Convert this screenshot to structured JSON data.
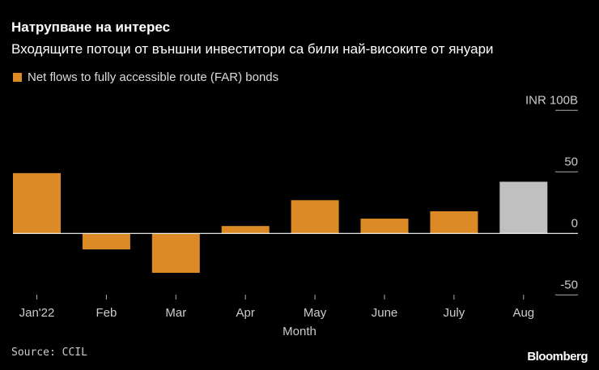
{
  "chart_data": {
    "type": "bar",
    "title": "Натрупване на интерес",
    "subtitle": "Входящите потоци от външни инвеститори са били най-високите от януари",
    "legend": [
      {
        "name": "Net flows to fully accessible route (FAR) bonds",
        "color": "#db8a26"
      }
    ],
    "legend_placement": "top-left",
    "categories": [
      "Jan'22",
      "Feb",
      "Mar",
      "Apr",
      "May",
      "June",
      "July",
      "Aug"
    ],
    "values": [
      49,
      -13,
      -32,
      6,
      27,
      12,
      18,
      42
    ],
    "bar_colors": [
      "#db8a26",
      "#db8a26",
      "#db8a26",
      "#db8a26",
      "#db8a26",
      "#db8a26",
      "#db8a26",
      "#c0c0c0"
    ],
    "xlabel": "Month",
    "ylabel": "",
    "y_unit_label": "INR 100B",
    "yticks": [
      100,
      50,
      0,
      -50
    ],
    "ytick_labels": [
      "INR 100B",
      "50",
      "0",
      "-50"
    ],
    "ylim": [
      -50,
      100
    ],
    "y_axis_position": "right",
    "grid": false
  },
  "source": "Source: CCIL",
  "brand": "Bloomberg"
}
